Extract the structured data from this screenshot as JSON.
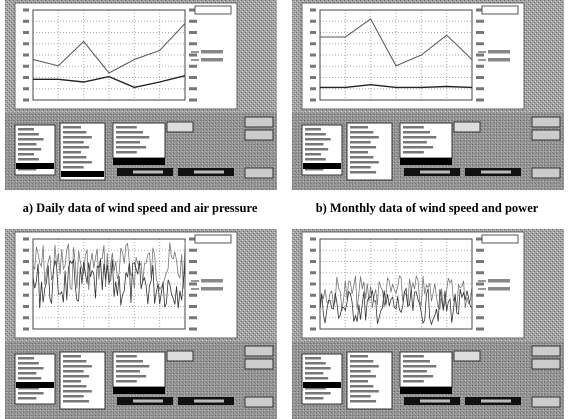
{
  "figure": {
    "captions": [
      "a) Daily data of wind speed and air pressure",
      "b) Monthly data of wind speed and power"
    ]
  }
}
